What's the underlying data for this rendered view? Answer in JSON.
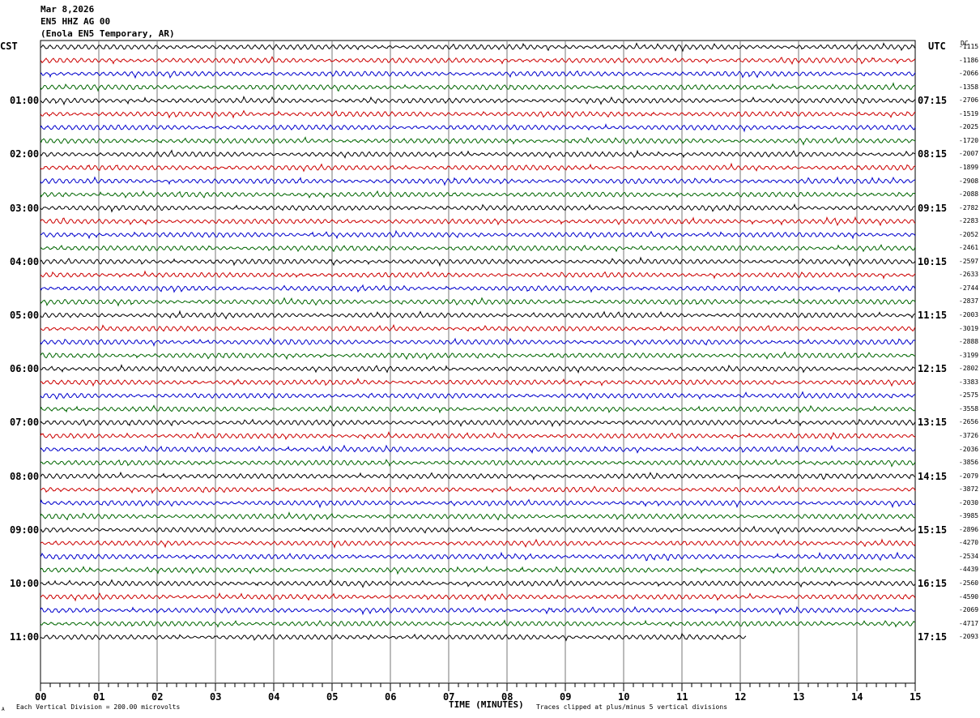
{
  "header": {
    "date": "Mar 8,2026",
    "channel": "EN5 HHZ AG 00",
    "station": "(Enola EN5 Temporary, AR)"
  },
  "left_zone": "CST",
  "right_zone": "UTC",
  "dc_header": "DC",
  "footer": {
    "scale_note": "Each Vertical Division =  200.00 microvolts",
    "clip_note": "Traces clipped at plus/minus 5 vertical divisions",
    "corner_mark": "A"
  },
  "chart_data": {
    "type": "line",
    "title": "",
    "xlabel": "TIME (MINUTES)",
    "ylabel": "",
    "xlim": [
      0,
      15
    ],
    "x_ticks": [
      "00",
      "01",
      "02",
      "03",
      "04",
      "05",
      "06",
      "07",
      "08",
      "09",
      "10",
      "11",
      "12",
      "13",
      "14",
      "15"
    ],
    "left_hour_labels": [
      "01:00",
      "02:00",
      "03:00",
      "04:00",
      "05:00",
      "06:00",
      "07:00",
      "08:00",
      "09:00",
      "10:00",
      "11:00"
    ],
    "right_hour_labels": [
      "07:15",
      "08:15",
      "09:15",
      "10:15",
      "11:15",
      "12:15",
      "13:15",
      "14:15",
      "15:15",
      "16:15",
      "17:15"
    ],
    "trace_colors": [
      "#000000",
      "#cc0000",
      "#0000cc",
      "#006600"
    ],
    "trace_count": 45,
    "last_trace_end_minutes": 12.1,
    "dc_offsets": [
      "-1115",
      "-1186",
      "-2066",
      "-1358",
      "-2706",
      "-1519",
      "-2025",
      "-1720",
      "-2007",
      "-1899",
      "-2908",
      "-2088",
      "-2782",
      "-2283",
      "-2052",
      "-2461",
      "-2597",
      "-2633",
      "-2744",
      "-2837",
      "-2003",
      "-3019",
      "-2888",
      "-3199",
      "-2802",
      "-3383",
      "-2575",
      "-3558",
      "-2656",
      "-3726",
      "-2036",
      "-3856",
      "-2079",
      "-3872",
      "-2030",
      "-3985",
      "-2896",
      "-4270",
      "-2534",
      "-4439",
      "-2560",
      "-4590",
      "-2069",
      "-4717",
      "-2093"
    ]
  }
}
